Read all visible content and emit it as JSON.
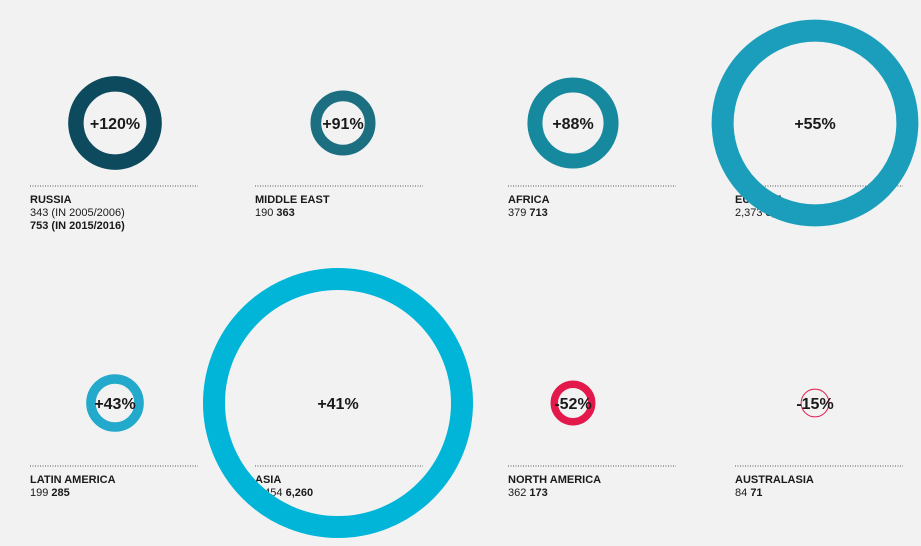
{
  "chart_data": {
    "type": "bubble",
    "categories": [
      "RUSSIA",
      "MIDDLE EAST",
      "AFRICA",
      "EUROPE",
      "LATIN AMERICA",
      "ASIA",
      "NORTH AMERICA",
      "AUSTRALASIA"
    ],
    "period_labels": [
      "(IN 2005/2006)",
      "(IN 2015/2016)"
    ],
    "old_values": [
      343,
      190,
      379,
      2373,
      199,
      4454,
      362,
      84
    ],
    "old_value_labels": [
      "343",
      "190",
      "379",
      "2,373",
      "199",
      "4,454",
      "362",
      "84"
    ],
    "new_values": [
      753,
      363,
      713,
      3670,
      285,
      6260,
      173,
      71
    ],
    "new_value_labels": [
      "753",
      "363",
      "713",
      "3,670",
      "285",
      "6,260",
      "173",
      "71"
    ],
    "change_labels": [
      "+120%",
      "+91%",
      "+88%",
      "+55%",
      "+43%",
      "+41%",
      "-52%",
      "-15%"
    ],
    "colors": [
      "#0d4a5e",
      "#1b6f80",
      "#17899e",
      "#1a9ebb",
      "#22a9cb",
      "#00b5d8",
      "#e3184b",
      "#e3184b"
    ]
  }
}
